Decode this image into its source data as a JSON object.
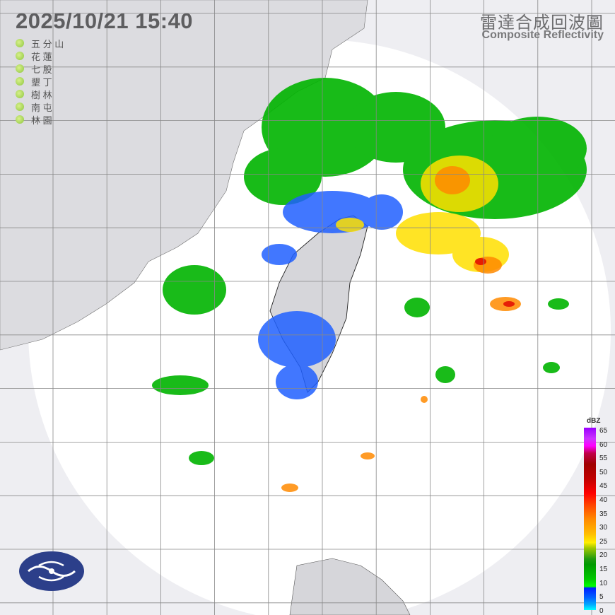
{
  "header": {
    "datetime": "2025/10/21  15:40",
    "title_zh": "雷達合成回波圖",
    "title_en": "Composite Reflectivity"
  },
  "stations": [
    {
      "name": "五 分 山"
    },
    {
      "name": "花 蓮"
    },
    {
      "name": "七 股"
    },
    {
      "name": "墾 丁"
    },
    {
      "name": "樹 林"
    },
    {
      "name": "南 屯"
    },
    {
      "name": "林 園"
    }
  ],
  "station_color": "#8cc63e",
  "colorbar": {
    "unit": "dBZ",
    "ticks": [
      "65",
      "60",
      "55",
      "50",
      "45",
      "40",
      "35",
      "30",
      "25",
      "20",
      "15",
      "10",
      "5",
      "0"
    ],
    "colors": {
      "low": "#00ffff",
      "blue": "#0020ff",
      "green": "#00c800",
      "yellow": "#ffee00",
      "orange": "#ff8800",
      "red": "#ff0000",
      "darkred": "#a00000",
      "magenta": "#ff00ff",
      "purple": "#9a00ff"
    }
  },
  "logo": {
    "icon": "cwa-logo-icon",
    "color": "#2c3f8a"
  }
}
